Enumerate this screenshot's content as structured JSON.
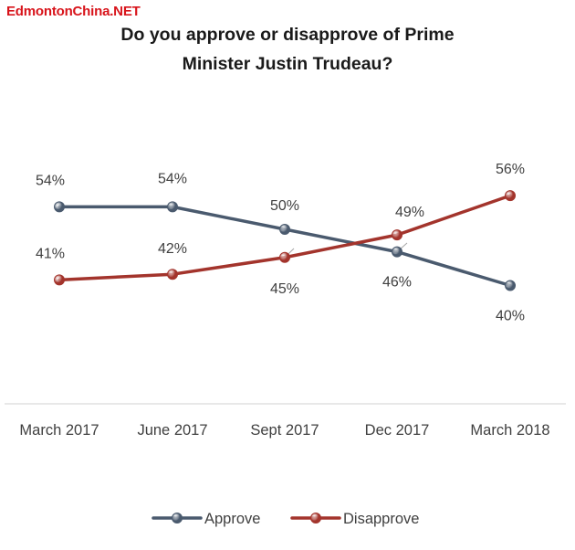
{
  "watermark": "EdmontonChina.NET",
  "chart_data": {
    "type": "line",
    "title_line1": "Do you approve or disapprove of Prime",
    "title_line2": "Minister Justin Trudeau?",
    "categories": [
      "March 2017",
      "June 2017",
      "Sept 2017",
      "Dec 2017",
      "March 2018"
    ],
    "series": [
      {
        "name": "Approve",
        "values": [
          54,
          54,
          50,
          46,
          40
        ],
        "color": "#4a5a6e"
      },
      {
        "name": "Disapprove",
        "values": [
          41,
          42,
          45,
          49,
          56
        ],
        "color": "#a3342c"
      }
    ],
    "value_suffix": "%",
    "grid": false,
    "legend_position": "bottom",
    "show_data_labels": true
  }
}
